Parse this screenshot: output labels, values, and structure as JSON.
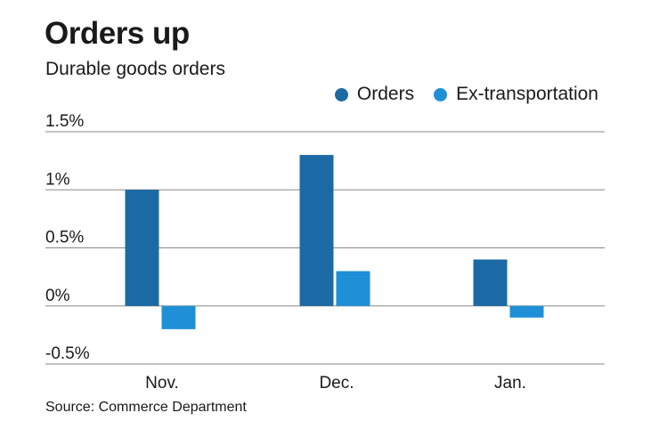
{
  "title": "Orders up",
  "subtitle": "Durable goods orders",
  "source": "Source: Commerce Department",
  "colors": {
    "orders": "#1c6aa4",
    "ex_transportation": "#1f8fd8",
    "gridline": "#888888"
  },
  "chart_data": {
    "type": "bar",
    "categories": [
      "Nov.",
      "Dec.",
      "Jan."
    ],
    "series": [
      {
        "name": "Orders",
        "values": [
          1.0,
          1.3,
          0.4
        ]
      },
      {
        "name": "Ex-transportation",
        "values": [
          -0.2,
          0.3,
          -0.1
        ]
      }
    ],
    "yticks": [
      1.5,
      1.0,
      0.5,
      0,
      -0.5
    ],
    "ytick_labels": [
      "1.5%",
      "1%",
      "0.5%",
      "0%",
      "-0.5%"
    ],
    "ylim": [
      -0.5,
      1.5
    ],
    "unit": "%",
    "legend": "top-right"
  }
}
